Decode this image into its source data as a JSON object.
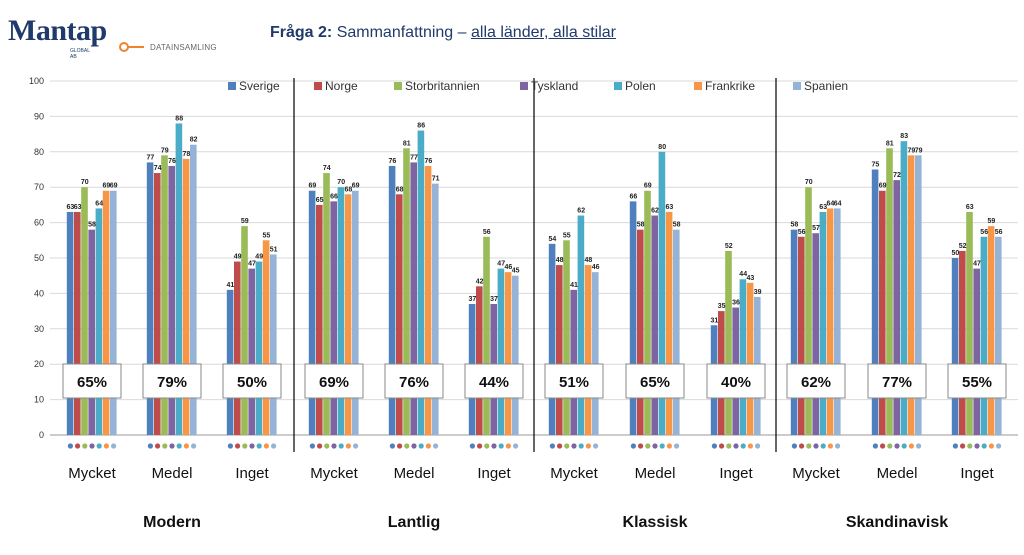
{
  "header": {
    "logo_name": "Mantap",
    "logo_sub": "GLOBAL AB",
    "logo_tag": "DATAINSAMLING",
    "title_prefix": "Fråga 2:",
    "title_mid": " Sammanfattning – ",
    "title_link": "alla länder, alla stilar"
  },
  "colors": {
    "Sverige": "#4f7fbd",
    "Norge": "#bf4b4b",
    "Storbritannien": "#9bbb59",
    "Tyskland": "#7e64a0",
    "Polen": "#4aacc6",
    "Frankrike": "#f79646",
    "Spanien": "#95b3d7"
  },
  "chart_data": {
    "type": "bar",
    "ylim": [
      0,
      100
    ],
    "yticks": [
      0,
      10,
      20,
      30,
      40,
      50,
      60,
      70,
      80,
      90,
      100
    ],
    "grid": true,
    "legend_position": "top",
    "series_names": [
      "Sverige",
      "Norge",
      "Storbritannien",
      "Tyskland",
      "Polen",
      "Frankrike",
      "Spanien"
    ],
    "groups": [
      {
        "category": "Modern",
        "styles": [
          {
            "label": "Mycket",
            "summary": "65%",
            "values": [
              63,
              63,
              70,
              58,
              64,
              69,
              69
            ]
          },
          {
            "label": "Medel",
            "summary": "79%",
            "values": [
              77,
              74,
              79,
              76,
              88,
              78,
              82
            ]
          },
          {
            "label": "Inget",
            "summary": "50%",
            "values": [
              41,
              49,
              59,
              47,
              49,
              55,
              51
            ]
          }
        ]
      },
      {
        "category": "Lantlig",
        "styles": [
          {
            "label": "Mycket",
            "summary": "69%",
            "values": [
              69,
              65,
              74,
              66,
              70,
              68,
              69
            ]
          },
          {
            "label": "Medel",
            "summary": "76%",
            "values": [
              76,
              68,
              81,
              77,
              86,
              76,
              71
            ]
          },
          {
            "label": "Inget",
            "summary": "44%",
            "values": [
              37,
              42,
              56,
              37,
              47,
              46,
              45
            ]
          }
        ]
      },
      {
        "category": "Klassisk",
        "styles": [
          {
            "label": "Mycket",
            "summary": "51%",
            "values": [
              54,
              48,
              55,
              41,
              62,
              48,
              46
            ]
          },
          {
            "label": "Medel",
            "summary": "65%",
            "values": [
              66,
              58,
              69,
              62,
              80,
              63,
              58
            ]
          },
          {
            "label": "Inget",
            "summary": "40%",
            "values": [
              31,
              35,
              52,
              36,
              44,
              43,
              39
            ]
          }
        ]
      },
      {
        "category": "Skandinavisk",
        "styles": [
          {
            "label": "Mycket",
            "summary": "62%",
            "values": [
              58,
              56,
              70,
              57,
              63,
              64,
              64
            ]
          },
          {
            "label": "Medel",
            "summary": "77%",
            "values": [
              75,
              69,
              81,
              72,
              83,
              79,
              79
            ]
          },
          {
            "label": "Inget",
            "summary": "55%",
            "values": [
              50,
              52,
              63,
              47,
              56,
              59,
              56
            ]
          }
        ]
      }
    ]
  }
}
